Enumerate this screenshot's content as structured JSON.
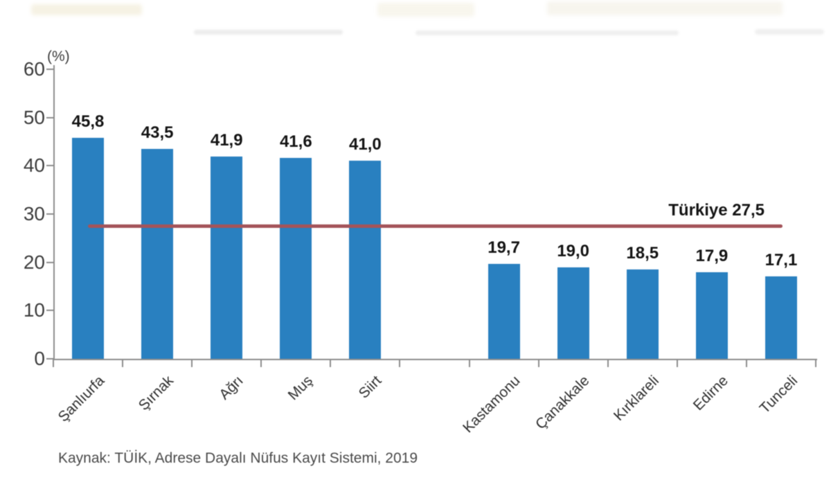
{
  "chart_data": {
    "type": "bar",
    "title": "",
    "unit_label": "(%)",
    "categories": [
      "Şanlıurfa",
      "Şırnak",
      "Ağrı",
      "Muş",
      "Siirt",
      "Kastamonu",
      "Çanakkale",
      "Kırklareli",
      "Edirne",
      "Tunceli"
    ],
    "values": [
      45.8,
      43.5,
      41.9,
      41.6,
      41.0,
      19.7,
      19.0,
      18.5,
      17.9,
      17.1
    ],
    "value_labels": [
      "45,8",
      "43,5",
      "41,9",
      "41,6",
      "41,0",
      "19,7",
      "19,0",
      "18,5",
      "17,9",
      "17,1"
    ],
    "gap_after_category": "Siirt",
    "ylim": [
      0,
      60
    ],
    "yticks": [
      0,
      10,
      20,
      30,
      40,
      50,
      60
    ],
    "grid": false,
    "legend": "none",
    "reference_line": {
      "label": "Türkiye 27,5",
      "value": 27.5
    },
    "source": "Kaynak: TÜİK, Adrese Dayalı Nüfus Kayıt Sistemi, 2019",
    "colors": {
      "bar": "#2980C0",
      "reference_line": "#A4545A",
      "axis": "#8C8C8C",
      "value_label": "#141414"
    }
  }
}
